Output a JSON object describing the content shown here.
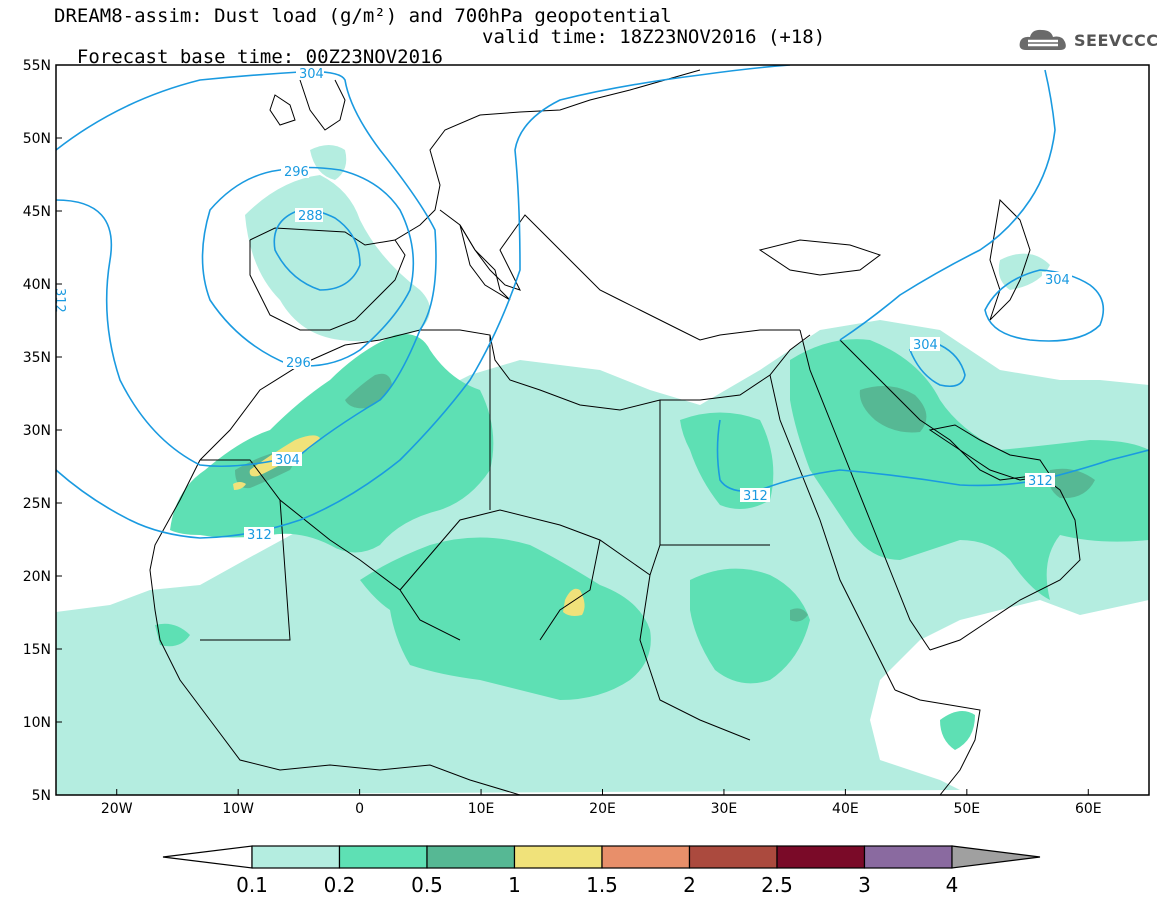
{
  "title": {
    "line1": "DREAM8-assim: Dust load (g/m²) and 700hPa geopotential",
    "line2_base": "Forecast base time: 00Z23NOV2016",
    "line2_valid": "valid time: 18Z23NOV2016 (+18)"
  },
  "logo": {
    "text": "SEEVCCC",
    "icon": "cloud-icon"
  },
  "map": {
    "lat_range": [
      5,
      55
    ],
    "lon_range": [
      -25,
      65
    ],
    "lat_labels": [
      "55N",
      "50N",
      "45N",
      "40N",
      "35N",
      "30N",
      "25N",
      "20N",
      "15N",
      "10N",
      "5N"
    ],
    "lon_labels": [
      "20W",
      "10W",
      "0",
      "10E",
      "20E",
      "30E",
      "40E",
      "50E",
      "60E"
    ]
  },
  "contours": [
    {
      "label": "304",
      "color": "#1a9ae0"
    },
    {
      "label": "296",
      "color": "#1a9ae0"
    },
    {
      "label": "288",
      "color": "#1a9ae0"
    },
    {
      "label": "296",
      "color": "#1a9ae0"
    },
    {
      "label": "304",
      "color": "#1a9ae0"
    },
    {
      "label": "312",
      "color": "#1a9ae0"
    },
    {
      "label": "312",
      "color": "#1a9ae0"
    },
    {
      "label": "304",
      "color": "#1a9ae0"
    },
    {
      "label": "304",
      "color": "#1a9ae0"
    },
    {
      "label": "312",
      "color": "#1a9ae0"
    },
    {
      "label": "312",
      "color": "#1a9ae0"
    }
  ],
  "colorbar": {
    "labels": [
      "0.1",
      "0.2",
      "0.5",
      "1",
      "1.5",
      "2",
      "2.5",
      "3",
      "4"
    ],
    "colors": [
      "#b4ede0",
      "#5ee0b4",
      "#56b894",
      "#f0e27a",
      "#e88f6a",
      "#ab4a3e",
      "#7a0a28",
      "#8a6aa0"
    ],
    "under_color": "#ffffff",
    "over_color": "#a0a0a0"
  },
  "dust_levels": {
    "light": "#b4ede0",
    "medium": "#5ee0b4",
    "dark": "#56b894",
    "yellow": "#f0e27a"
  }
}
